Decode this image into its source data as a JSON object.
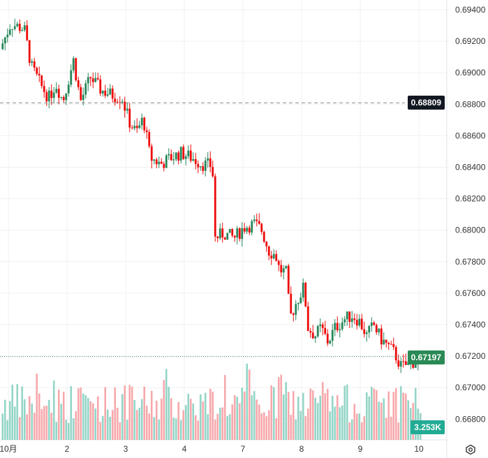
{
  "chart_data": {
    "type": "candlestick",
    "title": "",
    "ylim": [
      0.6668,
      0.6944
    ],
    "y_ticks": [
      "0.69400",
      "0.69200",
      "0.69000",
      "0.68800",
      "0.68600",
      "0.68400",
      "0.68200",
      "0.68000",
      "0.67800",
      "0.67600",
      "0.67400",
      "0.67200",
      "0.67000",
      "0.66800"
    ],
    "x_ticks": [
      "10月",
      "2",
      "3",
      "4",
      "7",
      "8",
      "9",
      "10"
    ],
    "path_days": [
      -0.14,
      0.04,
      0.27,
      0.39,
      0.57,
      0.69,
      0.81,
      0.93,
      1.11,
      1.23,
      1.4,
      1.58,
      1.76,
      1.94,
      2.06,
      2.18,
      2.3,
      2.42,
      2.6,
      2.77,
      2.95,
      3.13,
      3.3,
      3.48,
      3.52,
      3.67,
      3.85,
      4.02,
      4.2,
      4.32,
      4.44,
      4.56,
      4.62,
      4.74,
      4.8,
      4.92,
      5.04,
      5.11,
      5.23,
      5.33,
      5.45,
      5.57,
      5.75,
      5.87,
      5.99,
      6.11,
      6.23,
      6.35,
      6.46,
      6.58,
      6.7,
      6.88,
      7.06
    ],
    "path_close": [
      0.6915,
      0.6931,
      0.6928,
      0.6904,
      0.6891,
      0.6884,
      0.6893,
      0.6882,
      0.6908,
      0.6882,
      0.6897,
      0.6889,
      0.6886,
      0.6884,
      0.6869,
      0.6862,
      0.6871,
      0.6846,
      0.6842,
      0.6846,
      0.6849,
      0.6846,
      0.6842,
      0.6841,
      0.6795,
      0.6798,
      0.6795,
      0.6802,
      0.6804,
      0.68,
      0.6787,
      0.6784,
      0.6775,
      0.6773,
      0.6744,
      0.6755,
      0.6764,
      0.6738,
      0.6733,
      0.6738,
      0.6729,
      0.6738,
      0.6744,
      0.6746,
      0.6742,
      0.6733,
      0.674,
      0.6731,
      0.6727,
      0.6722,
      0.6713,
      0.6716,
      0.67197
    ],
    "reference_line": 0.68809,
    "reference_label": "0.68809",
    "last_price": 0.67197,
    "last_price_label": "0.67197",
    "volume_label": "3.253K",
    "colors": {
      "up": "#26875a",
      "down": "#ee0a0a",
      "vol_up": "#93d5c7",
      "vol_down": "#f7a8ab",
      "last": "#2a8a55",
      "ref": "#131722",
      "vol_badge": "#22ab94"
    }
  }
}
